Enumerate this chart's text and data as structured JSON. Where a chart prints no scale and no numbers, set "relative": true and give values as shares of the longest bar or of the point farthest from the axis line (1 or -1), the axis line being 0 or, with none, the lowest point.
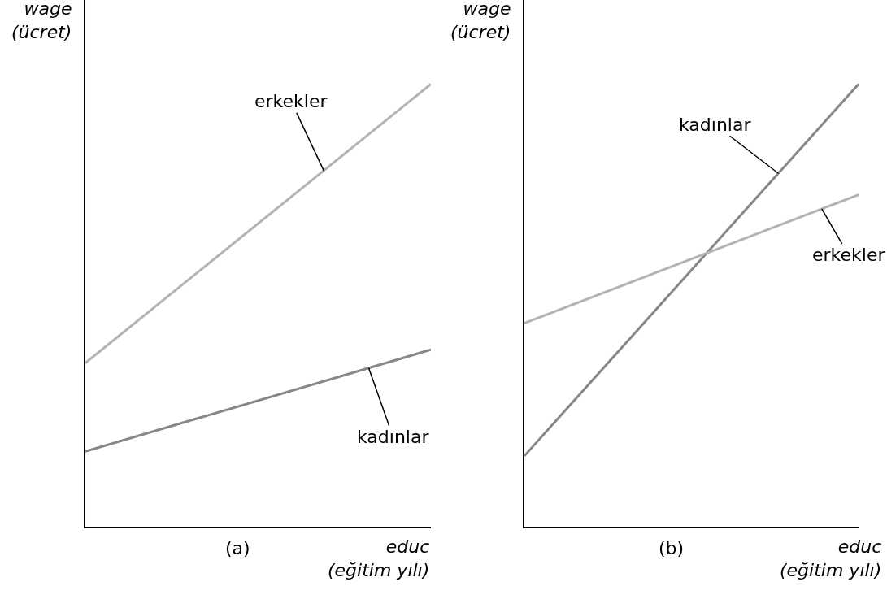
{
  "chart_data": [
    {
      "type": "line",
      "title": "(a)",
      "xlabel": "educ\n(eğitim yılı)",
      "ylabel": "wage\n(ücret)",
      "relative": true,
      "categories": [
        null,
        null
      ],
      "series": [
        {
          "name": "erkekler",
          "color": "#b3b3b3",
          "values": [
            0.37,
            1
          ]
        },
        {
          "name": "kadınlar",
          "color": "#878787",
          "values": [
            0.17,
            0.4
          ]
        }
      ]
    },
    {
      "type": "line",
      "title": "(b)",
      "xlabel": "educ\n(eğitim yılı)",
      "ylabel": "wage\n(ücret)",
      "relative": true,
      "categories": [
        null,
        null
      ],
      "series": [
        {
          "name": "kadınlar",
          "color": "#878787",
          "values": [
            0.16,
            1
          ]
        },
        {
          "name": "erkekler",
          "color": "#b3b3b3",
          "values": [
            0.46,
            0.75
          ]
        }
      ]
    }
  ]
}
